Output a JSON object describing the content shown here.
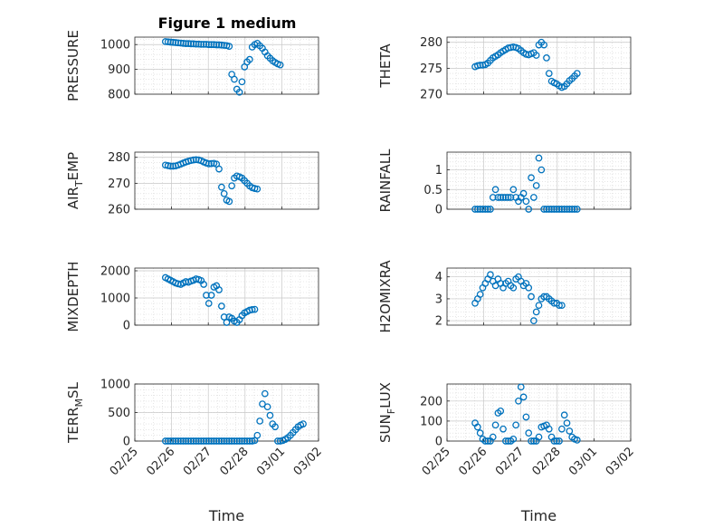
{
  "figure": {
    "title": "Figure 1 medium",
    "marker_color": "#0072BD",
    "grid": true,
    "minor_grid": true
  },
  "chart_data": [
    {
      "type": "scatter",
      "title": "Figure 1 medium",
      "ylabel": "PRESSURE",
      "xlabel": "",
      "ylim": [
        800,
        1030
      ],
      "yticks": [
        800,
        900,
        1000
      ],
      "xticks": [],
      "x_start": "02/26 00:00",
      "x_step_hours": 2,
      "values": [
        1012,
        1011,
        1010,
        1009,
        1008,
        1007,
        1006,
        1005,
        1004,
        1004,
        1003,
        1003,
        1002,
        1002,
        1001,
        1001,
        1001,
        1000,
        1000,
        1000,
        999,
        999,
        998,
        997,
        996,
        993,
        880,
        860,
        820,
        808,
        850,
        910,
        930,
        940,
        990,
        1000,
        1005,
        995,
        985,
        970,
        955,
        945,
        935,
        928,
        922,
        918
      ]
    },
    {
      "type": "scatter",
      "title": "",
      "ylabel": "THETA",
      "xlabel": "",
      "ylim": [
        270,
        281
      ],
      "yticks": [
        270,
        275,
        280
      ],
      "xticks": [],
      "x_start": "02/25 22:00",
      "x_step_hours": 2,
      "values": [
        275.3,
        275.5,
        275.6,
        275.6,
        275.7,
        276.0,
        276.5,
        277.0,
        277.3,
        277.6,
        278.0,
        278.3,
        278.6,
        278.9,
        279.0,
        279.1,
        279.0,
        278.8,
        278.4,
        278.0,
        277.7,
        277.6,
        277.8,
        278.0,
        277.5,
        279.5,
        280.0,
        279.5,
        277.0,
        274.0,
        272.5,
        272.2,
        272.0,
        271.6,
        271.3,
        271.5,
        272.0,
        272.6,
        273.0,
        273.5,
        274.0
      ]
    },
    {
      "type": "scatter",
      "title": "",
      "ylabel": "AIR_TEMP",
      "xlabel": "",
      "ylim": [
        260,
        282
      ],
      "yticks": [
        260,
        270,
        280
      ],
      "xticks": [],
      "x_start": "02/26 00:00",
      "x_step_hours": 2,
      "values": [
        277.0,
        276.8,
        276.6,
        276.6,
        276.7,
        277.0,
        277.4,
        277.8,
        278.2,
        278.5,
        278.8,
        279.0,
        279.1,
        279.0,
        278.7,
        278.2,
        277.8,
        277.5,
        277.6,
        277.7,
        277.4,
        275.5,
        268.5,
        266.0,
        263.5,
        263.0,
        269.0,
        272.0,
        272.8,
        272.5,
        272.0,
        271.0,
        270.0,
        269.0,
        268.3,
        268.0,
        267.8
      ]
    },
    {
      "type": "scatter",
      "title": "",
      "ylabel": "RAINFALL",
      "xlabel": "",
      "ylim": [
        0,
        1.45
      ],
      "yticks": [
        0,
        0.5,
        1
      ],
      "xticks": [],
      "x_start": "02/25 22:00",
      "x_step_hours": 2,
      "values": [
        0,
        0,
        0,
        0,
        0,
        0,
        0,
        0.3,
        0.5,
        0.3,
        0.3,
        0.3,
        0.3,
        0.3,
        0.3,
        0.5,
        0.3,
        0.2,
        0.3,
        0.4,
        0.2,
        0,
        0.8,
        0.3,
        0.6,
        1.3,
        1.0,
        0,
        0,
        0,
        0,
        0,
        0,
        0,
        0,
        0,
        0,
        0,
        0,
        0,
        0
      ]
    },
    {
      "type": "scatter",
      "title": "",
      "ylabel": "MIXDEPTH",
      "xlabel": "",
      "ylim": [
        0,
        2100
      ],
      "yticks": [
        0,
        1000,
        2000
      ],
      "xticks": [],
      "x_start": "02/26 00:00",
      "x_step_hours": 2,
      "values": [
        1750,
        1700,
        1650,
        1600,
        1550,
        1520,
        1500,
        1550,
        1600,
        1580,
        1620,
        1650,
        1700,
        1680,
        1640,
        1500,
        1100,
        800,
        1100,
        1400,
        1450,
        1300,
        700,
        300,
        100,
        300,
        250,
        150,
        100,
        200,
        350,
        450,
        500,
        550,
        570,
        580
      ]
    },
    {
      "type": "scatter",
      "title": "",
      "ylabel": "H2OMIXRA",
      "xlabel": "",
      "ylim": [
        1.8,
        4.4
      ],
      "yticks": [
        2,
        3,
        4
      ],
      "xticks": [],
      "x_start": "02/25 22:00",
      "x_step_hours": 2,
      "values": [
        2.8,
        3.0,
        3.2,
        3.5,
        3.7,
        3.9,
        4.1,
        3.8,
        3.6,
        3.9,
        3.7,
        3.5,
        3.7,
        3.8,
        3.6,
        3.5,
        3.9,
        4.0,
        3.8,
        3.6,
        3.7,
        3.5,
        3.1,
        2.0,
        2.4,
        2.7,
        3.0,
        3.1,
        3.1,
        3.0,
        2.9,
        2.8,
        2.8,
        2.7,
        2.7
      ]
    },
    {
      "type": "scatter",
      "title": "",
      "ylabel": "TERR_MSL",
      "xlabel": "Time",
      "ylim": [
        0,
        1000
      ],
      "yticks": [
        0,
        500,
        1000
      ],
      "xticks": [
        "02/25",
        "02/26",
        "02/27",
        "02/28",
        "03/01",
        "03/02"
      ],
      "x_start": "02/26 00:00",
      "x_step_hours": 2,
      "values": [
        0,
        0,
        0,
        0,
        0,
        0,
        0,
        0,
        0,
        0,
        0,
        0,
        0,
        0,
        0,
        0,
        0,
        0,
        0,
        0,
        0,
        0,
        0,
        0,
        0,
        0,
        0,
        0,
        0,
        0,
        0,
        0,
        0,
        0,
        0,
        10,
        100,
        350,
        650,
        830,
        600,
        450,
        300,
        250,
        0,
        0,
        10,
        30,
        60,
        100,
        150,
        200,
        250,
        280,
        300
      ]
    },
    {
      "type": "scatter",
      "title": "",
      "ylabel": "SUN_FLUX",
      "xlabel": "Time",
      "ylim": [
        0,
        285
      ],
      "yticks": [
        0,
        100,
        200
      ],
      "xticks": [
        "02/25",
        "02/26",
        "02/27",
        "02/28",
        "03/01",
        "03/02"
      ],
      "x_start": "02/25 22:00",
      "x_step_hours": 2,
      "values": [
        90,
        70,
        40,
        10,
        0,
        0,
        0,
        20,
        80,
        140,
        150,
        60,
        0,
        0,
        0,
        10,
        80,
        200,
        270,
        220,
        120,
        40,
        0,
        0,
        0,
        20,
        70,
        75,
        80,
        60,
        20,
        0,
        0,
        0,
        60,
        130,
        90,
        50,
        20,
        10,
        5
      ]
    }
  ]
}
